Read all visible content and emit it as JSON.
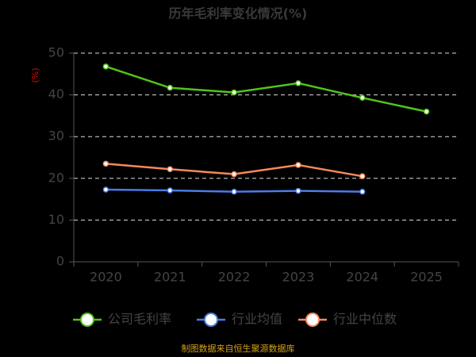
{
  "chart_data": {
    "type": "line",
    "title": "历年毛利率变化情况(%)",
    "y_label": "(%)",
    "categories": [
      "2020",
      "2021",
      "2022",
      "2023",
      "2024",
      "2025"
    ],
    "series": [
      {
        "name": "公司毛利率",
        "color": "#52c41a",
        "values": [
          46.8,
          41.7,
          40.6,
          42.8,
          39.3,
          36.0
        ]
      },
      {
        "name": "行业均值",
        "color": "#4a7be8",
        "values": [
          17.3,
          17.1,
          16.8,
          17.0,
          16.8,
          null
        ]
      },
      {
        "name": "行业中位数",
        "color": "#f5895a",
        "values": [
          23.5,
          22.2,
          21.0,
          23.2,
          20.5,
          null
        ]
      }
    ],
    "ylim": [
      0,
      50
    ],
    "yticks": [
      0,
      10,
      20,
      30,
      40,
      50
    ],
    "grid": true,
    "source": "制图数据来自恒生聚源数据库"
  }
}
